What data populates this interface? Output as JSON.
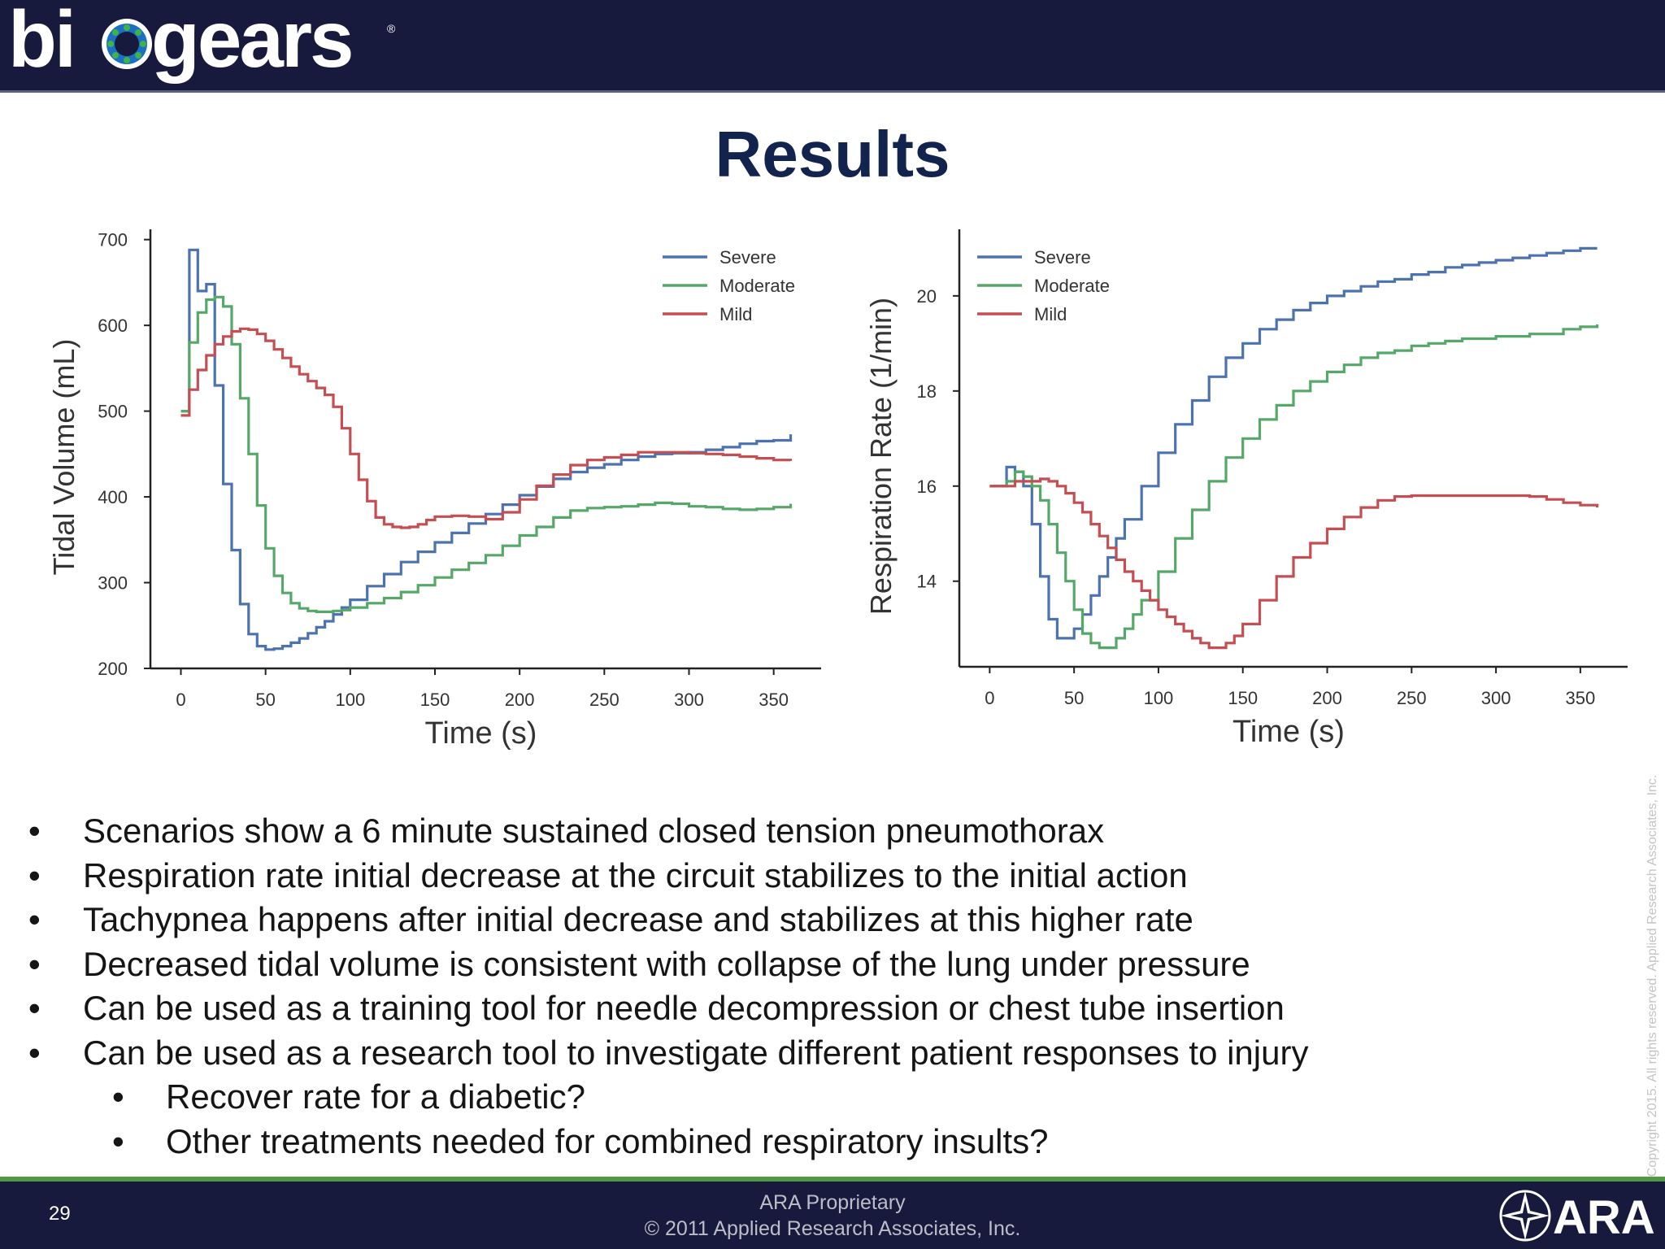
{
  "header": {
    "logo_text": "biogears",
    "colors": {
      "background": "#171a3c",
      "logo_text": "#ffffff",
      "logo_ring_blue": "#1d6fc4",
      "logo_ring_green": "#3db34a"
    }
  },
  "slide": {
    "title": "Results",
    "title_color": "#12244d"
  },
  "chart_data": [
    {
      "type": "line",
      "xlabel": "Time (s)",
      "ylabel": "Tidal Volume (mL)",
      "xlim": [
        -18,
        378
      ],
      "ylim": [
        200,
        712
      ],
      "xticks": [
        0,
        50,
        100,
        150,
        200,
        250,
        300,
        350
      ],
      "yticks": [
        200,
        300,
        400,
        500,
        600,
        700
      ],
      "legend_position": "top-right",
      "grid": false,
      "series": [
        {
          "name": "Severe",
          "color": "#4c72b0",
          "x": [
            0,
            5,
            10,
            15,
            20,
            25,
            30,
            35,
            40,
            45,
            50,
            55,
            60,
            65,
            70,
            75,
            80,
            85,
            90,
            95,
            100,
            110,
            120,
            130,
            140,
            150,
            160,
            170,
            180,
            190,
            200,
            210,
            220,
            230,
            240,
            250,
            260,
            270,
            280,
            290,
            300,
            310,
            320,
            330,
            340,
            350,
            360
          ],
          "y": [
            500,
            688,
            640,
            648,
            530,
            415,
            338,
            275,
            240,
            226,
            222,
            223,
            226,
            230,
            235,
            241,
            248,
            255,
            263,
            271,
            280,
            296,
            310,
            324,
            336,
            347,
            358,
            369,
            380,
            391,
            402,
            412,
            421,
            429,
            434,
            438,
            443,
            447,
            450,
            451,
            452,
            455,
            458,
            462,
            465,
            466,
            473
          ]
        },
        {
          "name": "Moderate",
          "color": "#55a868",
          "x": [
            0,
            5,
            10,
            15,
            20,
            25,
            30,
            35,
            40,
            45,
            50,
            55,
            60,
            65,
            70,
            75,
            80,
            85,
            90,
            95,
            100,
            110,
            120,
            130,
            140,
            150,
            160,
            170,
            180,
            190,
            200,
            210,
            220,
            230,
            240,
            250,
            260,
            270,
            280,
            290,
            300,
            310,
            320,
            330,
            340,
            350,
            360
          ],
          "y": [
            500,
            580,
            615,
            630,
            633,
            622,
            578,
            515,
            450,
            390,
            340,
            308,
            288,
            276,
            270,
            267,
            266,
            266,
            267,
            268,
            271,
            276,
            282,
            289,
            297,
            306,
            315,
            323,
            332,
            343,
            355,
            365,
            376,
            384,
            387,
            388,
            389,
            391,
            393,
            392,
            389,
            388,
            386,
            385,
            386,
            388,
            392
          ]
        },
        {
          "name": "Mild",
          "color": "#c44e52",
          "x": [
            0,
            5,
            10,
            15,
            20,
            25,
            30,
            35,
            40,
            45,
            50,
            55,
            60,
            65,
            70,
            75,
            80,
            85,
            90,
            95,
            100,
            105,
            110,
            115,
            120,
            125,
            130,
            135,
            140,
            145,
            150,
            160,
            170,
            180,
            190,
            200,
            210,
            220,
            230,
            240,
            250,
            260,
            270,
            280,
            290,
            300,
            310,
            320,
            330,
            340,
            350,
            360
          ],
          "y": [
            495,
            525,
            548,
            565,
            578,
            587,
            593,
            596,
            595,
            590,
            582,
            572,
            562,
            552,
            543,
            535,
            527,
            519,
            505,
            480,
            450,
            420,
            395,
            376,
            368,
            365,
            364,
            365,
            368,
            373,
            377,
            378,
            377,
            374,
            382,
            397,
            413,
            426,
            437,
            443,
            446,
            449,
            452,
            452,
            452,
            451,
            450,
            449,
            447,
            445,
            443,
            442
          ]
        }
      ]
    },
    {
      "type": "line",
      "xlabel": "Time (s)",
      "ylabel": "Respiration Rate (1/min)",
      "xlim": [
        -18,
        378
      ],
      "ylim": [
        12.2,
        21.4
      ],
      "xticks": [
        0,
        50,
        100,
        150,
        200,
        250,
        300,
        350
      ],
      "yticks": [
        14,
        16,
        18,
        20
      ],
      "legend_position": "top-left",
      "grid": false,
      "series": [
        {
          "name": "Severe",
          "color": "#4c72b0",
          "x": [
            0,
            5,
            10,
            15,
            20,
            25,
            30,
            35,
            40,
            45,
            50,
            55,
            60,
            65,
            70,
            75,
            80,
            90,
            100,
            110,
            120,
            130,
            140,
            150,
            160,
            170,
            180,
            190,
            200,
            210,
            220,
            230,
            240,
            250,
            260,
            270,
            280,
            290,
            300,
            310,
            320,
            330,
            340,
            350,
            360
          ],
          "y": [
            16.0,
            16.0,
            16.4,
            16.3,
            16.0,
            15.2,
            14.1,
            13.2,
            12.8,
            12.8,
            13.0,
            13.3,
            13.7,
            14.1,
            14.5,
            14.9,
            15.3,
            16.0,
            16.7,
            17.3,
            17.8,
            18.3,
            18.7,
            19.0,
            19.3,
            19.5,
            19.7,
            19.85,
            20.0,
            20.1,
            20.2,
            20.3,
            20.35,
            20.45,
            20.5,
            20.6,
            20.65,
            20.7,
            20.75,
            20.8,
            20.85,
            20.9,
            20.95,
            21.0,
            21.0
          ]
        },
        {
          "name": "Moderate",
          "color": "#55a868",
          "x": [
            0,
            5,
            10,
            15,
            20,
            25,
            30,
            35,
            40,
            45,
            50,
            55,
            60,
            65,
            70,
            75,
            80,
            85,
            90,
            100,
            110,
            120,
            130,
            140,
            150,
            160,
            170,
            180,
            190,
            200,
            210,
            220,
            230,
            240,
            250,
            260,
            270,
            280,
            290,
            300,
            310,
            320,
            330,
            340,
            350,
            360
          ],
          "y": [
            16.0,
            16.0,
            16.1,
            16.3,
            16.2,
            16.0,
            15.7,
            15.2,
            14.6,
            14.0,
            13.4,
            12.9,
            12.7,
            12.6,
            12.6,
            12.8,
            13.0,
            13.3,
            13.6,
            14.2,
            14.9,
            15.5,
            16.1,
            16.6,
            17.0,
            17.4,
            17.7,
            18.0,
            18.2,
            18.4,
            18.55,
            18.7,
            18.8,
            18.85,
            18.95,
            19.0,
            19.05,
            19.1,
            19.1,
            19.15,
            19.15,
            19.2,
            19.2,
            19.3,
            19.35,
            19.4
          ]
        },
        {
          "name": "Mild",
          "color": "#c44e52",
          "x": [
            0,
            5,
            10,
            15,
            20,
            25,
            30,
            35,
            40,
            45,
            50,
            55,
            60,
            65,
            70,
            75,
            80,
            85,
            90,
            95,
            100,
            105,
            110,
            115,
            120,
            125,
            130,
            135,
            140,
            145,
            150,
            160,
            170,
            180,
            190,
            200,
            210,
            220,
            230,
            240,
            250,
            260,
            270,
            280,
            290,
            300,
            310,
            320,
            330,
            340,
            350,
            360
          ],
          "y": [
            16.0,
            16.0,
            16.0,
            16.1,
            16.1,
            16.1,
            16.15,
            16.1,
            16.0,
            15.85,
            15.65,
            15.45,
            15.2,
            14.95,
            14.7,
            14.45,
            14.2,
            14.0,
            13.8,
            13.6,
            13.4,
            13.25,
            13.1,
            12.95,
            12.8,
            12.7,
            12.6,
            12.6,
            12.7,
            12.85,
            13.1,
            13.6,
            14.1,
            14.5,
            14.8,
            15.1,
            15.35,
            15.55,
            15.7,
            15.78,
            15.8,
            15.8,
            15.8,
            15.8,
            15.8,
            15.8,
            15.8,
            15.78,
            15.72,
            15.65,
            15.6,
            15.55
          ]
        }
      ]
    }
  ],
  "bullets": [
    {
      "text": "Scenarios show a 6 minute sustained closed tension pneumothorax",
      "level": 1
    },
    {
      "text": "Respiration rate initial decrease at the circuit stabilizes to the initial action",
      "level": 1
    },
    {
      "text": "Tachypnea happens after initial decrease and stabilizes at this higher rate",
      "level": 1
    },
    {
      "text": "Decreased tidal volume is consistent with collapse of the lung under pressure",
      "level": 1
    },
    {
      "text": "Can be used as a training tool for needle decompression or chest tube insertion",
      "level": 1
    },
    {
      "text": "Can be used as a research tool to investigate different patient responses to injury",
      "level": 1
    },
    {
      "text": "Recover rate for a diabetic?",
      "level": 2
    },
    {
      "text": "Other treatments needed for combined respiratory insults?",
      "level": 2
    }
  ],
  "side_note": "Copyright 2015. All rights reserved. Applied Research Associates, Inc.",
  "footer": {
    "page_number": "29",
    "line1": "ARA Proprietary",
    "line2": "© 2011 Applied Research Associates, Inc.",
    "logo_text": "ARA",
    "colors": {
      "background": "#171a3c",
      "accent_line": "#4d9a42"
    }
  }
}
